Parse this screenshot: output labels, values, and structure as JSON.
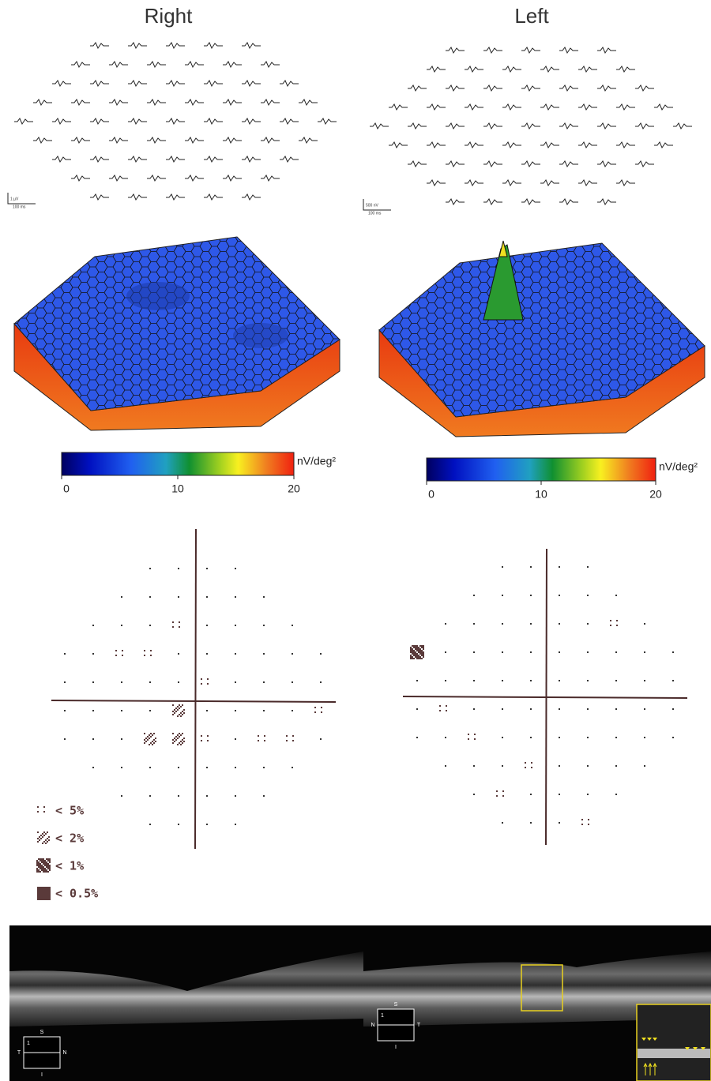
{
  "right": {
    "title": "Right",
    "scale": {
      "amplitude": "1 µV",
      "time": "100 ms"
    },
    "colorbar": {
      "unit": "nV/deg²",
      "ticks": [
        0,
        10,
        20
      ]
    },
    "oct": {
      "top": "S",
      "left": "T",
      "right": "N",
      "bottom": "I",
      "scan": "1"
    }
  },
  "left": {
    "title": "Left",
    "scale": {
      "amplitude": "500 nV",
      "time": "100 ms"
    },
    "colorbar": {
      "unit": "nV/deg²",
      "ticks": [
        0,
        10,
        20
      ]
    },
    "oct": {
      "top": "S",
      "left": "N",
      "right": "T",
      "bottom": "I",
      "scan": "1"
    }
  },
  "legend": [
    "< 5%",
    "< 2%",
    "< 1%",
    "< 0.5%"
  ]
}
